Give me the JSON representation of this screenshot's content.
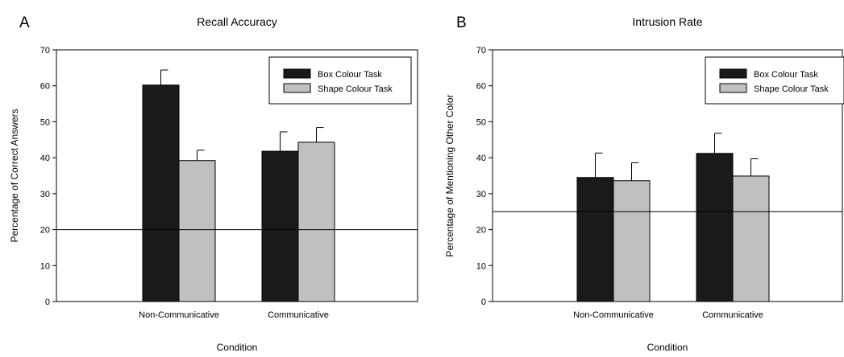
{
  "chart_data": [
    {
      "type": "bar",
      "panel": "A",
      "title": "Recall Accuracy",
      "xlabel": "Condition",
      "ylabel": "Percentage of Correct Answers",
      "ylim": [
        0,
        70
      ],
      "yticks": [
        "0",
        "10",
        "20",
        "30",
        "40",
        "50",
        "60",
        "70"
      ],
      "categories": [
        "Non-Communicative",
        "Communicative"
      ],
      "series": [
        {
          "name": "Box Colour Task",
          "color": "#1a1a1a",
          "values": [
            60.2,
            41.8
          ],
          "errors": [
            4.2,
            5.4
          ]
        },
        {
          "name": "Shape Colour Task",
          "color": "#c0c0c0",
          "values": [
            39.2,
            44.3
          ],
          "errors": [
            2.9,
            4.1
          ]
        }
      ],
      "reference_line": 20,
      "legend_position": "top-right",
      "grid": false
    },
    {
      "type": "bar",
      "panel": "B",
      "title": "Intrusion Rate",
      "xlabel": "Condition",
      "ylabel": "Percentage of Mentioning Other Color",
      "ylim": [
        0,
        70
      ],
      "yticks": [
        "0",
        "10",
        "20",
        "30",
        "40",
        "50",
        "60",
        "70"
      ],
      "categories": [
        "Non-Communicative",
        "Communicative"
      ],
      "series": [
        {
          "name": "Box Colour Task",
          "color": "#1a1a1a",
          "values": [
            34.5,
            41.2
          ],
          "errors": [
            6.8,
            5.6
          ]
        },
        {
          "name": "Shape Colour Task",
          "color": "#c0c0c0",
          "values": [
            33.6,
            34.9
          ],
          "errors": [
            5.0,
            4.8
          ]
        }
      ],
      "reference_line": 25,
      "legend_position": "top-right",
      "grid": false
    }
  ]
}
